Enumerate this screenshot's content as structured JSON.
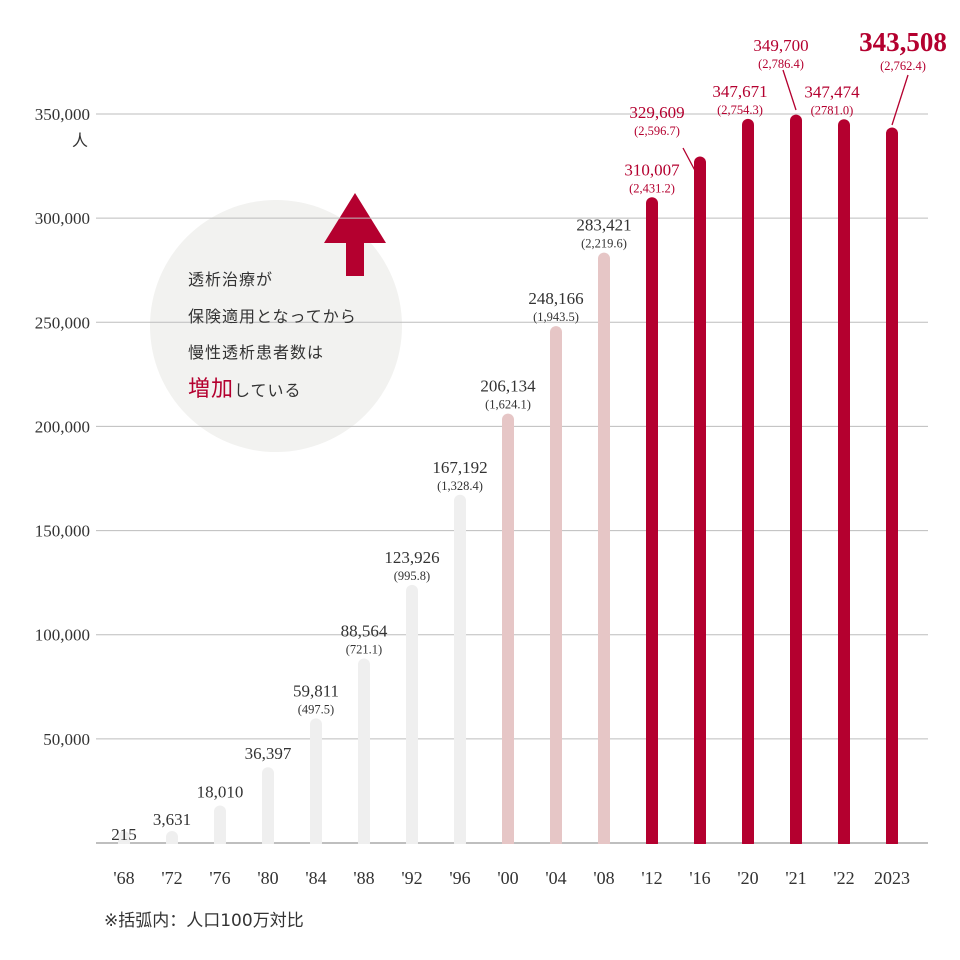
{
  "chart_data": {
    "type": "bar",
    "title": "",
    "xlabel": "",
    "ylabel": "人",
    "ylim": [
      0,
      350000
    ],
    "yticks": [
      "50,000",
      "100,000",
      "150,000",
      "200,000",
      "250,000",
      "300,000",
      "350,000"
    ],
    "ytick_values": [
      50000,
      100000,
      150000,
      200000,
      250000,
      300000,
      350000
    ],
    "grid": true,
    "categories": [
      "'68",
      "'72",
      "'76",
      "'80",
      "'84",
      "'88",
      "'92",
      "'96",
      "'00",
      "'04",
      "'08",
      "'12",
      "'16",
      "'20",
      "'21",
      "'22",
      "2023"
    ],
    "values": [
      215,
      3631,
      18010,
      36397,
      59811,
      88564,
      123926,
      167192,
      206134,
      248166,
      283421,
      310007,
      329609,
      347671,
      349700,
      347474,
      343508
    ],
    "value_labels": [
      "215",
      "3,631",
      "18,010",
      "36,397",
      "59,811",
      "88,564",
      "123,926",
      "167,192",
      "206,134",
      "248,166",
      "283,421",
      "310,007",
      "329,609",
      "347,671",
      "349,700",
      "347,474",
      "343,508"
    ],
    "per_million_labels": [
      "",
      "",
      "",
      "",
      "(497.5)",
      "(721.1)",
      "(995.8)",
      "(1,328.4)",
      "(1,624.1)",
      "(1,943.5)",
      "(2,219.6)",
      "(2,431.2)",
      "(2,596.7)",
      "(2,754.3)",
      "(2,786.4)",
      "(2781.0)",
      "(2,762.4)"
    ],
    "bar_groups": [
      "early",
      "early",
      "early",
      "early",
      "early",
      "early",
      "early",
      "early",
      "mid",
      "mid",
      "mid",
      "recent",
      "recent",
      "recent",
      "recent",
      "recent",
      "recent"
    ],
    "colors": {
      "early": "#efefef",
      "mid": "#e6c6c6",
      "recent": "#b4002f",
      "grid": "#bdbdbd",
      "label_dark": "#333333",
      "label_red": "#b4002f"
    }
  },
  "bubble": {
    "lines": [
      "透析治療が",
      "保険適用となってから",
      "慢性透析患者数は"
    ],
    "emphasis": "増加",
    "suffix": "している",
    "color": "#f2f2f0",
    "arrow_color": "#b4002f"
  },
  "note": "※括弧内：人口100万対比"
}
